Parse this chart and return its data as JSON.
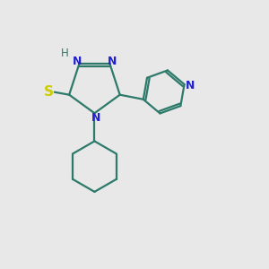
{
  "bg_color": "#e8e8e8",
  "teal_color": "#2d7a6a",
  "nitrogen_color": "#2222cc",
  "sulfur_color": "#cccc00",
  "h_color": "#2d7a6a",
  "line_width": 1.6,
  "figsize": [
    3.0,
    3.0
  ],
  "dpi": 100,
  "xlim": [
    0,
    10
  ],
  "ylim": [
    0,
    10
  ]
}
